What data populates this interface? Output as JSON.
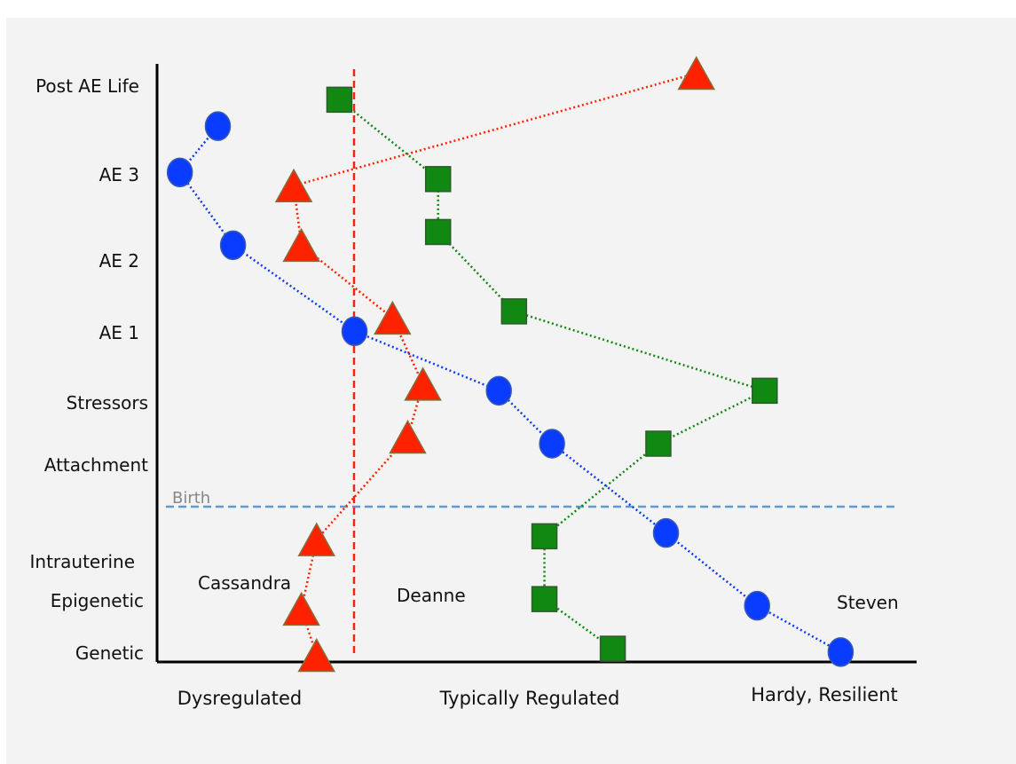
{
  "chart_data": {
    "type": "scatter",
    "y_categories": [
      "Genetic",
      "Epigenetic",
      "Intrauterine",
      "Attachment",
      "Stressors",
      "AE 1",
      "AE 2",
      "AE 3",
      "Post AE Life"
    ],
    "x_categories": [
      "Dysregulated",
      "Typically Regulated",
      "Hardy, Resilient"
    ],
    "birth_label": "Birth",
    "series": [
      {
        "name": "Cassandra",
        "marker": "triangle",
        "color": "#ff2200",
        "points": [
          {
            "x": 0.21,
            "y": 0.1
          },
          {
            "x": 0.19,
            "y": 0.8
          },
          {
            "x": 0.21,
            "y": 1.85
          },
          {
            "x": 0.33,
            "y": 3.4
          },
          {
            "x": 0.35,
            "y": 4.2
          },
          {
            "x": 0.31,
            "y": 5.2
          },
          {
            "x": 0.19,
            "y": 6.3
          },
          {
            "x": 0.18,
            "y": 7.2
          },
          {
            "x": 0.71,
            "y": 8.9
          }
        ]
      },
      {
        "name": "Deanne",
        "marker": "square",
        "color": "#118811",
        "points": [
          {
            "x": 0.6,
            "y": 0.2
          },
          {
            "x": 0.51,
            "y": 0.95
          },
          {
            "x": 0.51,
            "y": 1.9
          },
          {
            "x": 0.66,
            "y": 3.3
          },
          {
            "x": 0.8,
            "y": 4.1
          },
          {
            "x": 0.47,
            "y": 5.3
          },
          {
            "x": 0.37,
            "y": 6.5
          },
          {
            "x": 0.37,
            "y": 7.3
          },
          {
            "x": 0.24,
            "y": 8.5
          }
        ]
      },
      {
        "name": "Steven",
        "marker": "circle",
        "color": "#0a3cff",
        "points": [
          {
            "x": 0.9,
            "y": 0.15
          },
          {
            "x": 0.79,
            "y": 0.85
          },
          {
            "x": 0.67,
            "y": 1.95
          },
          {
            "x": 0.52,
            "y": 3.3
          },
          {
            "x": 0.45,
            "y": 4.1
          },
          {
            "x": 0.26,
            "y": 5.0
          },
          {
            "x": 0.1,
            "y": 6.3
          },
          {
            "x": 0.03,
            "y": 7.4
          },
          {
            "x": 0.08,
            "y": 8.1
          }
        ]
      }
    ]
  }
}
